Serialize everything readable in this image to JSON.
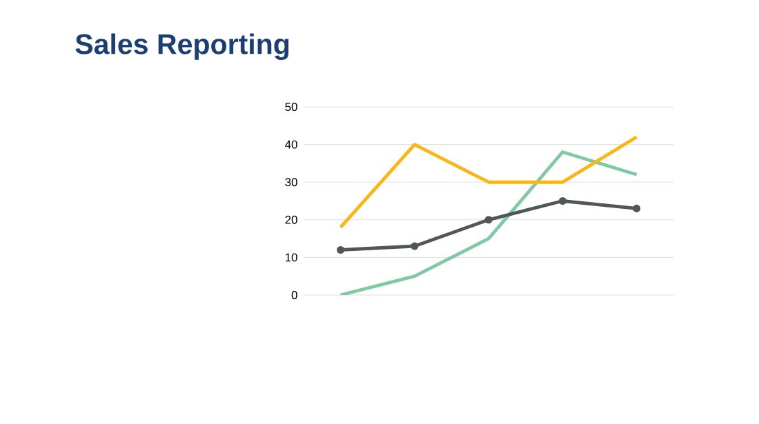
{
  "chart_data": {
    "type": "line",
    "title": "Sales Reporting",
    "categories": [
      null,
      null,
      null,
      null,
      null
    ],
    "series": [
      {
        "color": "#7fcaa2",
        "values": [
          0,
          5,
          15,
          38,
          32
        ]
      },
      {
        "color": "#505856",
        "values": [
          12,
          13,
          20,
          25,
          23
        ],
        "marker": "circle"
      },
      {
        "color": "#fdb515",
        "values": [
          18,
          40,
          30,
          30,
          42
        ]
      }
    ],
    "ylim": [
      0,
      50
    ],
    "yticks": [
      0,
      10,
      20,
      30,
      40,
      50
    ],
    "grid": "y"
  }
}
